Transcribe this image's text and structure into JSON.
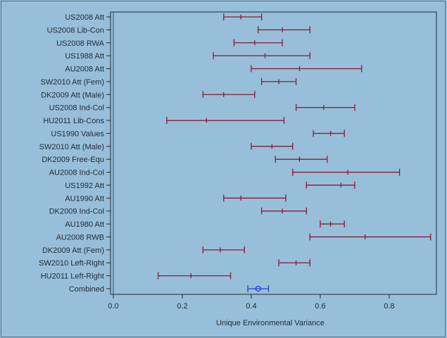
{
  "chart_data": {
    "type": "forest",
    "title": "",
    "xlabel": "Unique Environmental Variance",
    "ylabel": "",
    "xlim": [
      0,
      0.937
    ],
    "xticks": [
      0.0,
      0.2,
      0.4,
      0.6,
      0.8
    ],
    "xtick_labels": [
      "0.0",
      "0.2",
      "0.4",
      "0.6",
      "0.8"
    ],
    "grid": false,
    "colors": {
      "study": "#8b1a35",
      "combined": "#2b3fd6",
      "background": "#97bfd9",
      "axis": "#1e2a33"
    },
    "rows": [
      {
        "label": "US2008 Att",
        "low": 0.32,
        "est": 0.37,
        "high": 0.43
      },
      {
        "label": "US2008 Lib-Con",
        "low": 0.42,
        "est": 0.49,
        "high": 0.57
      },
      {
        "label": "US2008 RWA",
        "low": 0.35,
        "est": 0.41,
        "high": 0.49
      },
      {
        "label": "US1988 Att",
        "low": 0.29,
        "est": 0.44,
        "high": 0.57
      },
      {
        "label": "AU2008 Att",
        "low": 0.4,
        "est": 0.54,
        "high": 0.72
      },
      {
        "label": "SW2010 Att (Fem)",
        "low": 0.43,
        "est": 0.48,
        "high": 0.53
      },
      {
        "label": "DK2009 Att (Male)",
        "low": 0.26,
        "est": 0.32,
        "high": 0.41
      },
      {
        "label": "US2008 Ind-Col",
        "low": 0.53,
        "est": 0.61,
        "high": 0.7
      },
      {
        "label": "HU2011 Lib-Cons",
        "low": 0.155,
        "est": 0.27,
        "high": 0.495
      },
      {
        "label": "US1990 Values",
        "low": 0.58,
        "est": 0.63,
        "high": 0.67
      },
      {
        "label": "SW2010 Att (Male)",
        "low": 0.4,
        "est": 0.46,
        "high": 0.52
      },
      {
        "label": "DK2009 Free-Equ",
        "low": 0.47,
        "est": 0.54,
        "high": 0.62
      },
      {
        "label": "AU2008 Ind-Col",
        "low": 0.52,
        "est": 0.68,
        "high": 0.83
      },
      {
        "label": "US1992 Att",
        "low": 0.56,
        "est": 0.66,
        "high": 0.7
      },
      {
        "label": "AU1990 Att",
        "low": 0.32,
        "est": 0.37,
        "high": 0.5
      },
      {
        "label": "DK2009 Ind-Col",
        "low": 0.43,
        "est": 0.49,
        "high": 0.56
      },
      {
        "label": "AU1980 Att",
        "low": 0.6,
        "est": 0.63,
        "high": 0.67
      },
      {
        "label": "AU2008 RWB",
        "low": 0.57,
        "est": 0.73,
        "high": 0.92
      },
      {
        "label": "DK2009 Att (Fem)",
        "low": 0.26,
        "est": 0.31,
        "high": 0.38
      },
      {
        "label": "SW2010 Left-Right",
        "low": 0.48,
        "est": 0.53,
        "high": 0.57
      },
      {
        "label": "HU2011 Left-Right",
        "low": 0.13,
        "est": 0.225,
        "high": 0.34
      },
      {
        "label": "Combined",
        "low": 0.39,
        "est": 0.42,
        "high": 0.45,
        "combined": true
      }
    ]
  }
}
